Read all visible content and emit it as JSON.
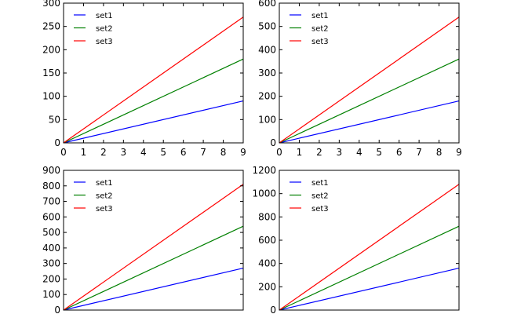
{
  "chart_data": [
    {
      "type": "line",
      "x": [
        0,
        9
      ],
      "xlim": [
        0,
        9
      ],
      "ylim": [
        0,
        300
      ],
      "xticks": [
        "0",
        "1",
        "2",
        "3",
        "4",
        "5",
        "6",
        "7",
        "8",
        "9"
      ],
      "yticks": [
        "0",
        "50",
        "100",
        "150",
        "200",
        "250",
        "300"
      ],
      "legend_position": "top-left",
      "series": [
        {
          "name": "set1",
          "color": "#0000ff",
          "values": [
            0,
            90
          ]
        },
        {
          "name": "set2",
          "color": "#008000",
          "values": [
            0,
            180
          ]
        },
        {
          "name": "set3",
          "color": "#ff0000",
          "values": [
            0,
            270
          ]
        }
      ]
    },
    {
      "type": "line",
      "x": [
        0,
        9
      ],
      "xlim": [
        0,
        9
      ],
      "ylim": [
        0,
        600
      ],
      "xticks": [
        "0",
        "1",
        "2",
        "3",
        "4",
        "5",
        "6",
        "7",
        "8",
        "9"
      ],
      "yticks": [
        "0",
        "100",
        "200",
        "300",
        "400",
        "500",
        "600"
      ],
      "legend_position": "top-left",
      "series": [
        {
          "name": "set1",
          "color": "#0000ff",
          "values": [
            0,
            180
          ]
        },
        {
          "name": "set2",
          "color": "#008000",
          "values": [
            0,
            360
          ]
        },
        {
          "name": "set3",
          "color": "#ff0000",
          "values": [
            0,
            540
          ]
        }
      ]
    },
    {
      "type": "line",
      "x": [
        0,
        9
      ],
      "xlim": [
        0,
        9
      ],
      "ylim": [
        0,
        900
      ],
      "xticks": [],
      "yticks": [
        "0",
        "100",
        "200",
        "300",
        "400",
        "500",
        "600",
        "700",
        "800",
        "900"
      ],
      "legend_position": "top-left",
      "series": [
        {
          "name": "set1",
          "color": "#0000ff",
          "values": [
            0,
            270
          ]
        },
        {
          "name": "set2",
          "color": "#008000",
          "values": [
            0,
            540
          ]
        },
        {
          "name": "set3",
          "color": "#ff0000",
          "values": [
            0,
            810
          ]
        }
      ]
    },
    {
      "type": "line",
      "x": [
        0,
        9
      ],
      "xlim": [
        0,
        9
      ],
      "ylim": [
        0,
        1200
      ],
      "xticks": [],
      "yticks": [
        "0",
        "200",
        "400",
        "600",
        "800",
        "1000",
        "1200"
      ],
      "legend_position": "top-left",
      "series": [
        {
          "name": "set1",
          "color": "#0000ff",
          "values": [
            0,
            360
          ]
        },
        {
          "name": "set2",
          "color": "#008000",
          "values": [
            0,
            720
          ]
        },
        {
          "name": "set3",
          "color": "#ff0000",
          "values": [
            0,
            1080
          ]
        }
      ]
    }
  ]
}
